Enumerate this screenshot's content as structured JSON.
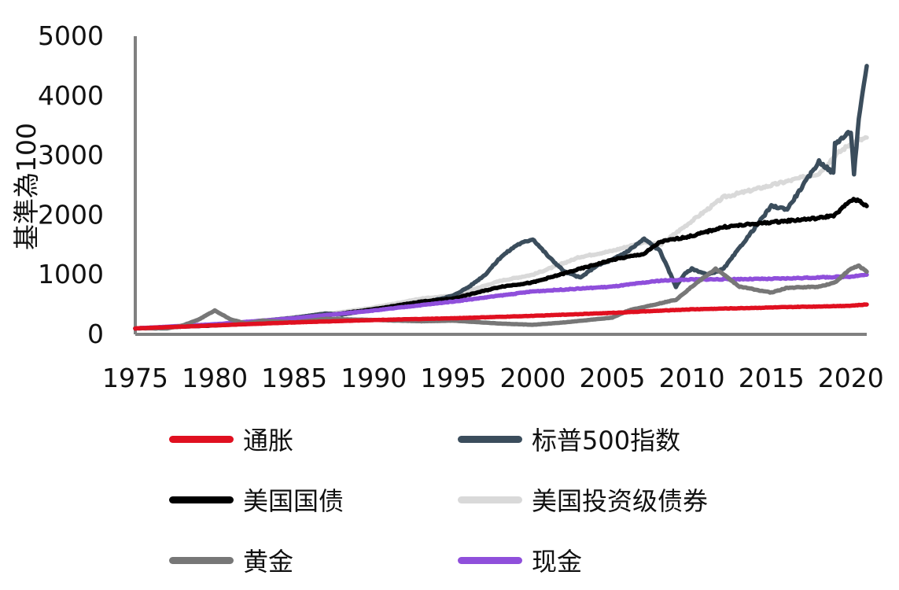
{
  "chart_data": {
    "type": "line",
    "ylabel": "基準為100",
    "xlabel": "",
    "xlim": [
      1975,
      2021
    ],
    "ylim": [
      0,
      5000
    ],
    "xticks": [
      "1975",
      "1980",
      "1985",
      "1990",
      "1995",
      "2000",
      "2005",
      "2010",
      "2015",
      "2020"
    ],
    "yticks": [
      "0",
      "1000",
      "2000",
      "3000",
      "4000",
      "5000"
    ],
    "grid": false,
    "legend_position": "bottom",
    "series": [
      {
        "name": "美国投资级债券",
        "color": "#d9d9d9",
        "x": [
          1975,
          1980,
          1985,
          1990,
          1993,
          1995,
          1998,
          2000,
          2003,
          2005,
          2007,
          2008,
          2010,
          2012,
          2015,
          2018,
          2019,
          2020,
          2021
        ],
        "y": [
          100,
          150,
          260,
          450,
          600,
          650,
          900,
          1000,
          1300,
          1400,
          1550,
          1500,
          1900,
          2300,
          2500,
          2700,
          3000,
          3200,
          3300
        ]
      },
      {
        "name": "标普500指数",
        "color": "#3b4d5c",
        "x": [
          1975,
          1980,
          1982,
          1985,
          1987,
          1988,
          1990,
          1993,
          1995,
          1996,
          1997,
          1998,
          1999,
          2000,
          2001,
          2002,
          2003,
          2004,
          2005,
          2006,
          2007,
          2008,
          2009,
          2009.5,
          2010,
          2011,
          2012,
          2013,
          2014,
          2015,
          2016,
          2017,
          2018,
          2018.9,
          2019,
          2020,
          2020.2,
          2020.5,
          2021
        ],
        "y": [
          100,
          150,
          200,
          280,
          350,
          330,
          420,
          520,
          650,
          800,
          1000,
          1300,
          1500,
          1600,
          1300,
          1050,
          950,
          1150,
          1250,
          1400,
          1600,
          1400,
          800,
          1000,
          1100,
          1000,
          1100,
          1450,
          1800,
          2150,
          2100,
          2500,
          2900,
          2700,
          3200,
          3400,
          2700,
          3600,
          4500
        ]
      },
      {
        "name": "美国国债",
        "color": "#000000",
        "x": [
          1975,
          1980,
          1985,
          1990,
          1993,
          1995,
          1998,
          2000,
          2003,
          2005,
          2007,
          2008,
          2010,
          2012,
          2015,
          2018,
          2019,
          2020,
          2020.5,
          2021
        ],
        "y": [
          100,
          150,
          250,
          420,
          550,
          600,
          800,
          870,
          1100,
          1250,
          1350,
          1550,
          1650,
          1800,
          1880,
          1950,
          2000,
          2250,
          2250,
          2150
        ]
      },
      {
        "name": "现金",
        "color": "#8f4fdb",
        "x": [
          1975,
          1980,
          1985,
          1990,
          1995,
          2000,
          2005,
          2008,
          2010,
          2015,
          2020,
          2021
        ],
        "y": [
          100,
          170,
          270,
          400,
          550,
          720,
          800,
          900,
          920,
          930,
          970,
          1000
        ]
      },
      {
        "name": "黄金",
        "color": "#777777",
        "x": [
          1975,
          1977,
          1978,
          1979,
          1980,
          1981,
          1982,
          1983,
          1985,
          1987,
          1990,
          1993,
          1995,
          1998,
          2000,
          2002,
          2005,
          2006,
          2008,
          2009,
          2010,
          2011,
          2011.5,
          2012,
          2013,
          2015,
          2016,
          2018,
          2019,
          2020,
          2020.5,
          2021
        ],
        "y": [
          100,
          100,
          150,
          250,
          400,
          250,
          180,
          230,
          200,
          260,
          240,
          220,
          230,
          180,
          160,
          200,
          280,
          400,
          520,
          580,
          800,
          1000,
          1100,
          1000,
          800,
          700,
          780,
          800,
          870,
          1100,
          1150,
          1050
        ]
      },
      {
        "name": "通胀",
        "color": "#e01020",
        "x": [
          1975,
          1980,
          1985,
          1990,
          1995,
          2000,
          2005,
          2010,
          2015,
          2020,
          2021
        ],
        "y": [
          100,
          150,
          200,
          240,
          270,
          310,
          360,
          420,
          450,
          480,
          500
        ]
      }
    ]
  },
  "legend_order": [
    "通胀",
    "标普500指数",
    "美国国债",
    "美国投资级债券",
    "黄金",
    "现金"
  ]
}
